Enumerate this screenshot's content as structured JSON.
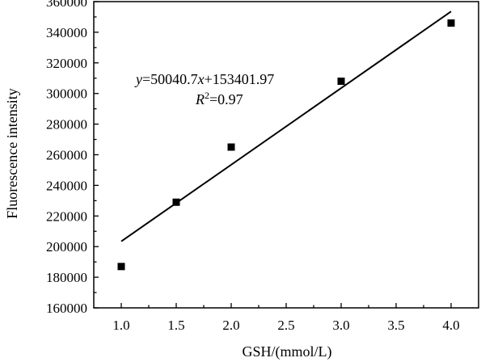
{
  "chart_data": {
    "type": "scatter",
    "xlabel": "GSH/(mmol/L)",
    "ylabel": "Fluorescence intensity",
    "xlim": [
      0.75,
      4.25
    ],
    "ylim": [
      160000,
      360000
    ],
    "x_ticks": [
      "1.0",
      "1.5",
      "2.0",
      "2.5",
      "3.0",
      "3.5",
      "4.0"
    ],
    "y_ticks": [
      "160000",
      "180000",
      "200000",
      "220000",
      "240000",
      "260000",
      "280000",
      "300000",
      "320000",
      "340000",
      "360000"
    ],
    "grid": false,
    "series": [
      {
        "points": [
          {
            "x": 1.0,
            "y": 187000
          },
          {
            "x": 1.5,
            "y": 229000
          },
          {
            "x": 2.0,
            "y": 265000
          },
          {
            "x": 3.0,
            "y": 308000
          },
          {
            "x": 4.0,
            "y": 346000
          }
        ]
      }
    ],
    "fit": {
      "slope": 50040.7,
      "intercept": 153401.97,
      "x_range": [
        1.0,
        4.0
      ]
    },
    "annotation": {
      "eq_y": "y",
      "eq_equals": "=50040.7",
      "eq_x": "x",
      "eq_rest": "+153401.97",
      "r2_r": "R",
      "r2_sup": "2",
      "r2_rest": "=0.97"
    }
  }
}
